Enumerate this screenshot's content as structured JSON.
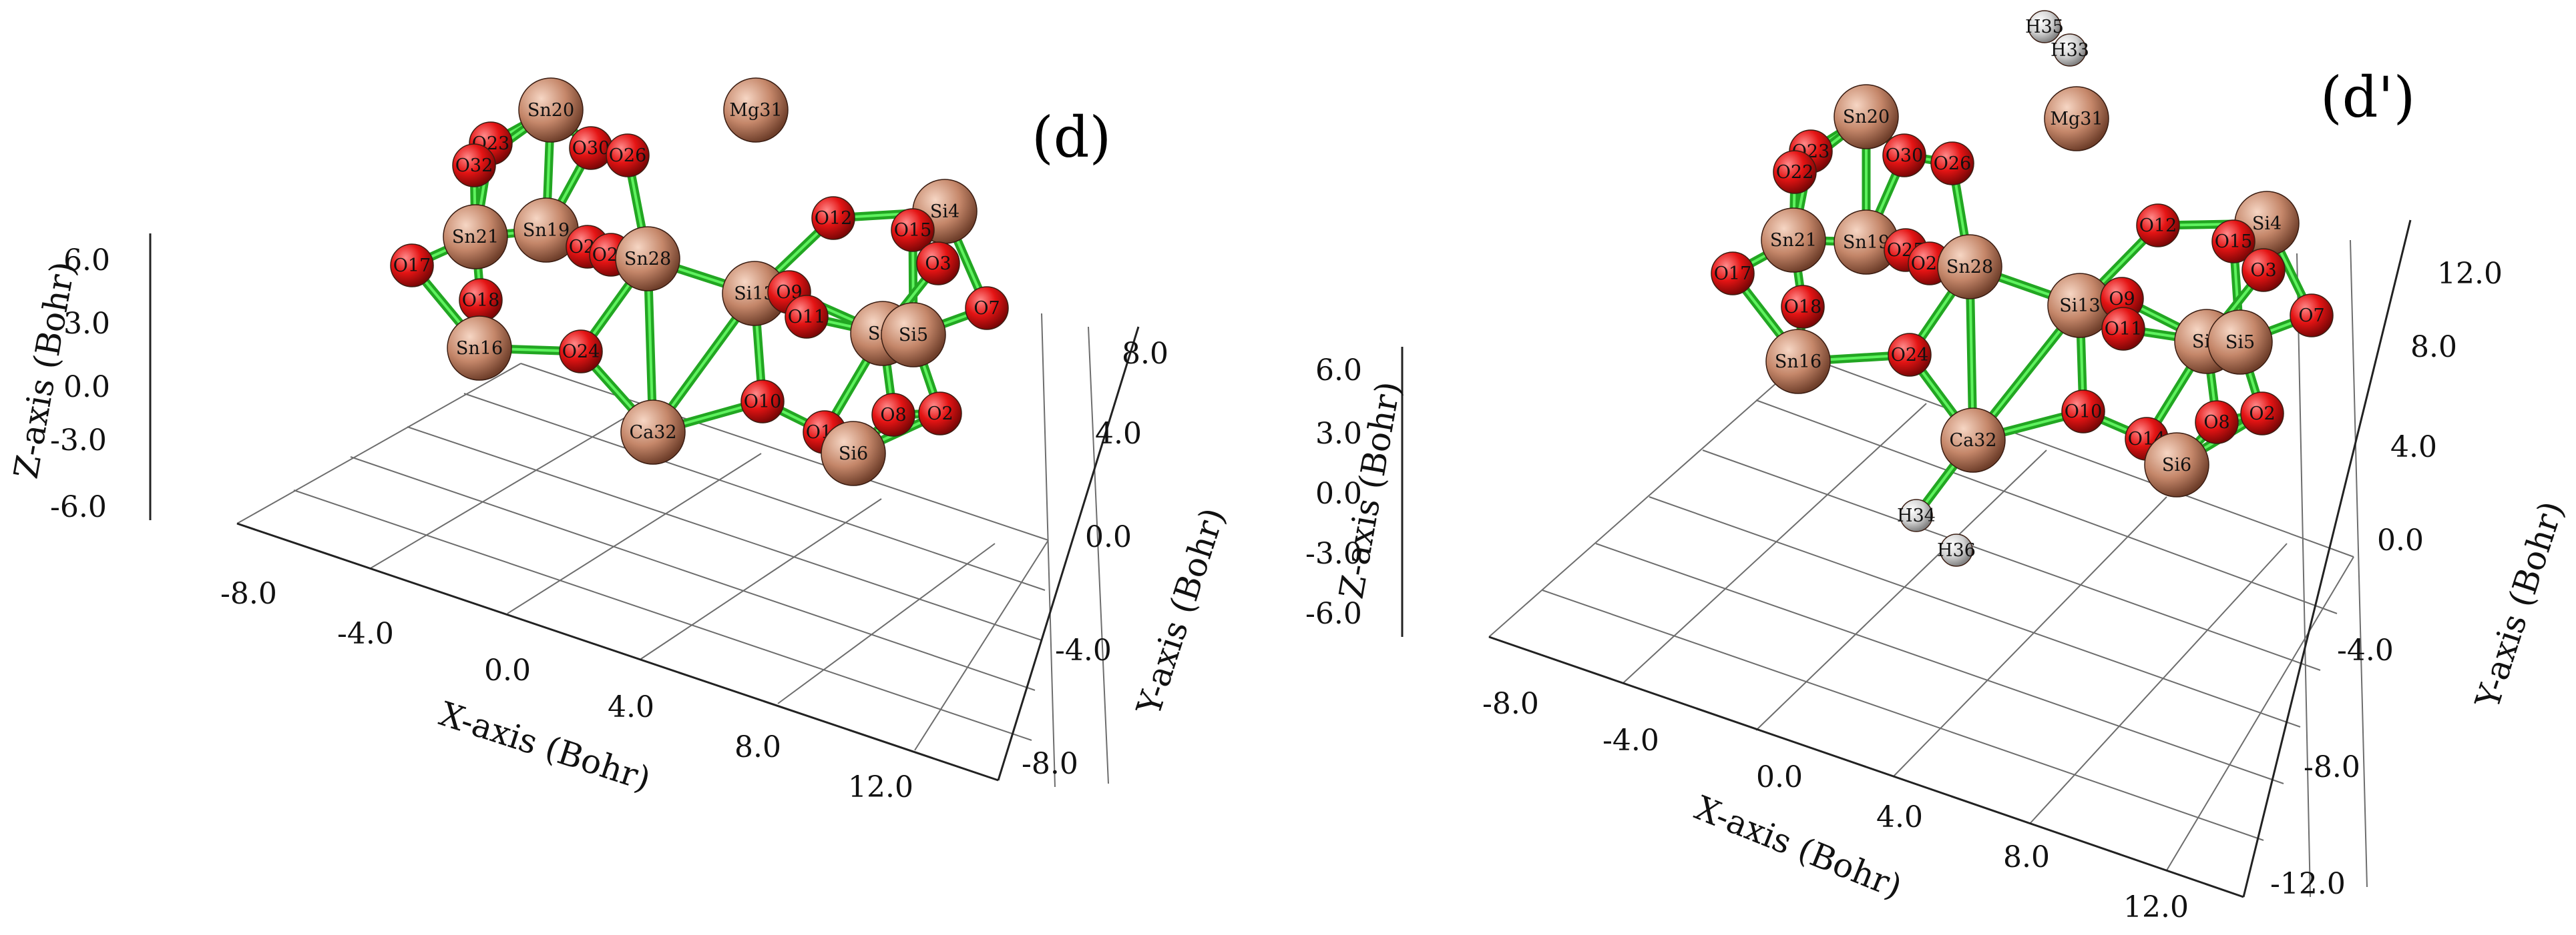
{
  "colors": {
    "oxygen": "#e41414",
    "metal": "#c5876a",
    "hydrogen": "#d2d2d2",
    "bond": "#22a622",
    "grid": "#6d6d6d"
  },
  "panels": [
    {
      "id": "d",
      "label": "(d)",
      "axes": {
        "x_title": "X-axis (Bohr)",
        "y_title": "Y-axis (Bohr)",
        "z_title": "Z-axis (Bohr)",
        "x_ticks": [
          "-8.0",
          "-4.0",
          "0.0",
          "4.0",
          "8.0",
          "12.0"
        ],
        "y_ticks": [
          "-8.0",
          "-4.0",
          "0.0",
          "4.0",
          "8.0"
        ],
        "z_ticks": [
          "-6.0",
          "-3.0",
          "0.0",
          "3.0",
          "6.0"
        ]
      },
      "atoms": [
        {
          "label": "Sn20",
          "type": "metal"
        },
        {
          "label": "O23",
          "type": "oxygen"
        },
        {
          "label": "O32",
          "type": "oxygen"
        },
        {
          "label": "O30",
          "type": "oxygen"
        },
        {
          "label": "O26",
          "type": "oxygen"
        },
        {
          "label": "Mg31",
          "type": "metal"
        },
        {
          "label": "Sn21",
          "type": "metal"
        },
        {
          "label": "Sn19",
          "type": "metal"
        },
        {
          "label": "O25",
          "type": "oxygen"
        },
        {
          "label": "O27",
          "type": "oxygen"
        },
        {
          "label": "Sn28",
          "type": "metal"
        },
        {
          "label": "O17",
          "type": "oxygen"
        },
        {
          "label": "O18",
          "type": "oxygen"
        },
        {
          "label": "O29",
          "type": "oxygen"
        },
        {
          "label": "Sn16",
          "type": "metal"
        },
        {
          "label": "O24",
          "type": "oxygen"
        },
        {
          "label": "Si13",
          "type": "metal"
        },
        {
          "label": "O9",
          "type": "oxygen"
        },
        {
          "label": "O11",
          "type": "oxygen"
        },
        {
          "label": "O12",
          "type": "oxygen"
        },
        {
          "label": "Si4",
          "type": "metal"
        },
        {
          "label": "O15",
          "type": "oxygen"
        },
        {
          "label": "O3",
          "type": "oxygen"
        },
        {
          "label": "O7",
          "type": "oxygen"
        },
        {
          "label": "Si1",
          "type": "metal"
        },
        {
          "label": "Si5",
          "type": "metal"
        },
        {
          "label": "O10",
          "type": "oxygen"
        },
        {
          "label": "Ca32",
          "type": "metal"
        },
        {
          "label": "O14",
          "type": "oxygen"
        },
        {
          "label": "O8",
          "type": "oxygen"
        },
        {
          "label": "O2",
          "type": "oxygen"
        },
        {
          "label": "Si6",
          "type": "metal"
        }
      ]
    },
    {
      "id": "d-prime",
      "label": "(d')",
      "axes": {
        "x_title": "X-axis (Bohr)",
        "y_title": "Y-axis (Bohr)",
        "z_title": "Z-axis (Bohr)",
        "x_ticks": [
          "-8.0",
          "-4.0",
          "0.0",
          "4.0",
          "8.0",
          "12.0"
        ],
        "y_ticks": [
          "-12.0",
          "-8.0",
          "-4.0",
          "0.0",
          "4.0",
          "8.0",
          "12.0"
        ],
        "z_ticks": [
          "-6.0",
          "-3.0",
          "0.0",
          "3.0",
          "6.0"
        ]
      },
      "atoms": [
        {
          "label": "H35",
          "type": "hydrogen"
        },
        {
          "label": "H33",
          "type": "hydrogen"
        },
        {
          "label": "Mg31",
          "type": "metal"
        },
        {
          "label": "Sn20",
          "type": "metal"
        },
        {
          "label": "O23",
          "type": "oxygen"
        },
        {
          "label": "O22",
          "type": "oxygen"
        },
        {
          "label": "O30",
          "type": "oxygen"
        },
        {
          "label": "O26",
          "type": "oxygen"
        },
        {
          "label": "Sn21",
          "type": "metal"
        },
        {
          "label": "Sn19",
          "type": "metal"
        },
        {
          "label": "O25",
          "type": "oxygen"
        },
        {
          "label": "O27",
          "type": "oxygen"
        },
        {
          "label": "Sn28",
          "type": "metal"
        },
        {
          "label": "O17",
          "type": "oxygen"
        },
        {
          "label": "O18",
          "type": "oxygen"
        },
        {
          "label": "O29",
          "type": "oxygen"
        },
        {
          "label": "Sn16",
          "type": "metal"
        },
        {
          "label": "O24",
          "type": "oxygen"
        },
        {
          "label": "Si13",
          "type": "metal"
        },
        {
          "label": "O9",
          "type": "oxygen"
        },
        {
          "label": "O11",
          "type": "oxygen"
        },
        {
          "label": "O12",
          "type": "oxygen"
        },
        {
          "label": "Si4",
          "type": "metal"
        },
        {
          "label": "O15",
          "type": "oxygen"
        },
        {
          "label": "O3",
          "type": "oxygen"
        },
        {
          "label": "O7",
          "type": "oxygen"
        },
        {
          "label": "Si1",
          "type": "metal"
        },
        {
          "label": "Si5",
          "type": "metal"
        },
        {
          "label": "O10",
          "type": "oxygen"
        },
        {
          "label": "Ca32",
          "type": "metal"
        },
        {
          "label": "O14",
          "type": "oxygen"
        },
        {
          "label": "O8",
          "type": "oxygen"
        },
        {
          "label": "O2",
          "type": "oxygen"
        },
        {
          "label": "Si6",
          "type": "metal"
        },
        {
          "label": "H34",
          "type": "hydrogen"
        },
        {
          "label": "H36",
          "type": "hydrogen"
        }
      ]
    }
  ]
}
